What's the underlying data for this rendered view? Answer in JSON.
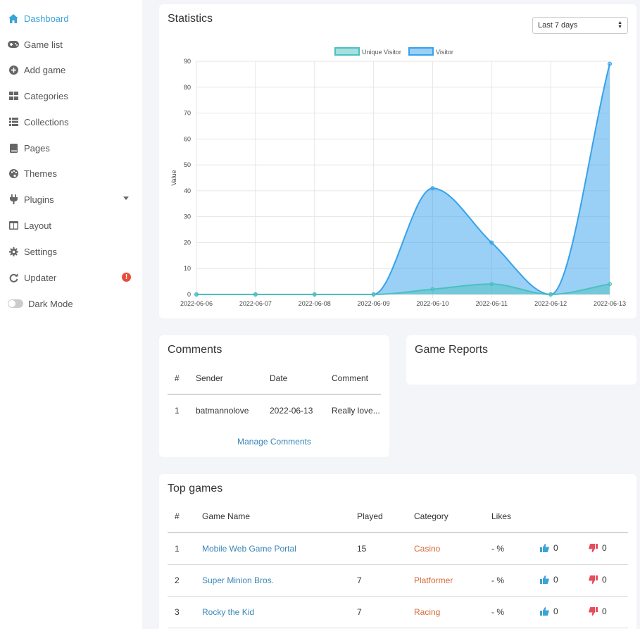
{
  "sidebar": {
    "items": [
      {
        "label": "Dashboard",
        "icon": "home-icon",
        "active": true
      },
      {
        "label": "Game list",
        "icon": "gamepad-icon"
      },
      {
        "label": "Add game",
        "icon": "plus-circle-icon"
      },
      {
        "label": "Categories",
        "icon": "grid-icon"
      },
      {
        "label": "Collections",
        "icon": "list-icon"
      },
      {
        "label": "Pages",
        "icon": "book-icon"
      },
      {
        "label": "Themes",
        "icon": "palette-icon"
      },
      {
        "label": "Plugins",
        "icon": "plug-icon"
      },
      {
        "label": "Layout",
        "icon": "columns-icon"
      },
      {
        "label": "Settings",
        "icon": "gear-icon"
      },
      {
        "label": "Updater",
        "icon": "refresh-icon",
        "alert": "!"
      },
      {
        "label": "Dark Mode",
        "icon": "toggle-icon"
      }
    ]
  },
  "statistics": {
    "title": "Statistics",
    "range_select": "Last 7 days"
  },
  "chart_data": {
    "type": "area",
    "x": [
      "2022-06-06",
      "2022-06-07",
      "2022-06-08",
      "2022-06-09",
      "2022-06-10",
      "2022-06-11",
      "2022-06-12",
      "2022-06-13"
    ],
    "series": [
      {
        "name": "Unique Visitor",
        "values": [
          0,
          0,
          0,
          0,
          2,
          4,
          0,
          4
        ],
        "color": "#4bc0c0"
      },
      {
        "name": "Visitor",
        "values": [
          0,
          0,
          0,
          0,
          41,
          20,
          0,
          89
        ],
        "color": "#36a2eb"
      }
    ],
    "ylabel": "Value",
    "ylim": [
      0,
      90
    ],
    "yticks": [
      0,
      10,
      20,
      30,
      40,
      50,
      60,
      70,
      80,
      90
    ],
    "grid": true,
    "legend": "top-center"
  },
  "comments": {
    "title": "Comments",
    "headers": [
      "#",
      "Sender",
      "Date",
      "Comment"
    ],
    "rows": [
      {
        "num": "1",
        "sender": "batmannolove",
        "date": "2022-06-13",
        "comment": "Really love..."
      }
    ],
    "manage_label": "Manage Comments"
  },
  "reports": {
    "title": "Game Reports"
  },
  "top_games": {
    "title": "Top games",
    "headers": [
      "#",
      "Game Name",
      "Played",
      "Category",
      "Likes"
    ],
    "rows": [
      {
        "num": "1",
        "name": "Mobile Web Game Portal",
        "played": "15",
        "category": "Casino",
        "likes": "- %",
        "up": "0",
        "down": "0"
      },
      {
        "num": "2",
        "name": "Super Minion Bros.",
        "played": "7",
        "category": "Platformer",
        "likes": "- %",
        "up": "0",
        "down": "0"
      },
      {
        "num": "3",
        "name": "Rocky the Kid",
        "played": "7",
        "category": "Racing",
        "likes": "- %",
        "up": "0",
        "down": "0"
      }
    ]
  }
}
